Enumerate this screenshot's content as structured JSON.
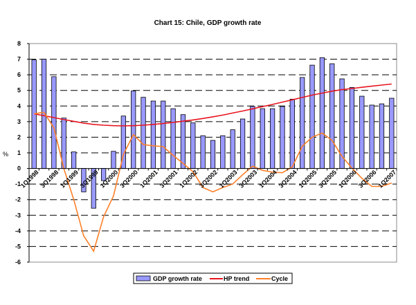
{
  "chart_data": {
    "type": "bar",
    "title": "Chart 15: Chile, GDP growth rate",
    "xlabel": "",
    "ylabel": "%",
    "ylim": [
      -6,
      8
    ],
    "yticks": [
      -6,
      -5,
      -4,
      -3,
      -2,
      -1,
      0,
      1,
      2,
      3,
      4,
      5,
      6,
      7,
      8
    ],
    "grid": true,
    "legend_position": "bottom",
    "categories": [
      "1Q1998",
      "2Q1998",
      "3Q1998",
      "4Q1998",
      "1Q1999",
      "2Q1999",
      "3Q1999",
      "4Q1999",
      "1Q2000",
      "2Q2000",
      "3Q2000",
      "4Q2000",
      "1Q2001",
      "2Q2001",
      "3Q2001",
      "4Q2001",
      "1Q2002",
      "2Q2002",
      "3Q2002",
      "4Q2002",
      "1Q2003",
      "2Q2003",
      "3Q2003",
      "4Q2003",
      "1Q2004",
      "2Q2004",
      "3Q2004",
      "4Q2004",
      "1Q2005",
      "2Q2005",
      "3Q2005",
      "4Q2005",
      "1Q2006",
      "2Q2006",
      "3Q2006",
      "4Q2006",
      "1Q2007"
    ],
    "tick_labels": [
      "1Q1998",
      "3Q1998",
      "1Q1999",
      "3Q1999",
      "1Q2000",
      "3Q2000",
      "1Q2001",
      "3Q2001",
      "1Q2002",
      "3Q2002",
      "1Q2003",
      "3Q2003",
      "1Q2004",
      "3Q2004",
      "1Q2005",
      "3Q2005",
      "1Q2006",
      "3Q2006",
      "1Q2007"
    ],
    "series": [
      {
        "name": "GDP growth rate",
        "type": "bar",
        "color": "#9999ff",
        "values": [
          6.96,
          7.0,
          5.88,
          3.23,
          1.06,
          -1.5,
          -2.55,
          -0.78,
          1.1,
          3.36,
          4.97,
          4.56,
          4.32,
          4.32,
          3.83,
          3.45,
          2.92,
          2.1,
          1.8,
          2.1,
          2.48,
          3.17,
          3.98,
          3.83,
          3.83,
          3.97,
          4.44,
          5.83,
          6.62,
          7.1,
          6.71,
          5.74,
          5.19,
          4.63,
          4.06,
          4.14,
          4.5
        ]
      },
      {
        "name": "HP trend",
        "type": "line",
        "color": "#e8141e",
        "values": [
          3.5,
          3.38,
          3.26,
          3.13,
          3.02,
          2.9,
          2.82,
          2.77,
          2.74,
          2.73,
          2.74,
          2.77,
          2.82,
          2.88,
          2.95,
          3.03,
          3.11,
          3.2,
          3.31,
          3.42,
          3.55,
          3.68,
          3.82,
          3.96,
          4.1,
          4.25,
          4.4,
          4.55,
          4.7,
          4.83,
          4.95,
          5.05,
          5.12,
          5.2,
          5.27,
          5.34,
          5.41
        ]
      },
      {
        "name": "Cycle",
        "type": "line",
        "color": "#ff7f27",
        "values": [
          3.5,
          3.6,
          2.6,
          0.0,
          -2.0,
          -4.32,
          -5.3,
          -3.1,
          -1.75,
          0.9,
          2.17,
          1.53,
          1.45,
          1.4,
          0.84,
          0.32,
          -0.2,
          -1.22,
          -1.5,
          -1.22,
          -1.0,
          -0.4,
          0.15,
          -0.12,
          -0.24,
          -0.27,
          0.1,
          1.43,
          2.0,
          2.27,
          1.8,
          0.77,
          0.03,
          -0.63,
          -1.15,
          -1.15,
          -0.93
        ]
      }
    ]
  }
}
